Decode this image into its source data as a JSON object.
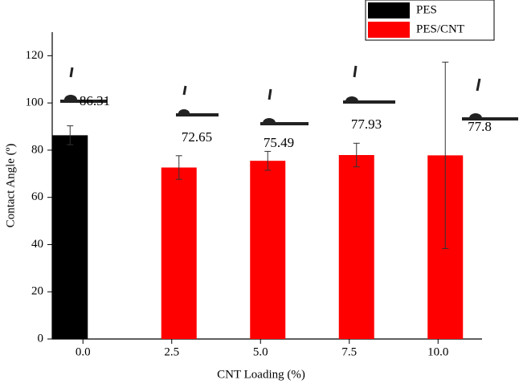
{
  "chart_data": {
    "type": "bar",
    "x_label": "CNT Loading (%)",
    "y_label": "Contact Angle (º)",
    "categories": [
      "0.0",
      "2.5",
      "5.0",
      "7.5",
      "10.0"
    ],
    "series": [
      {
        "name": "PES",
        "color": "#000000",
        "values": [
          86.31,
          null,
          null,
          null,
          null
        ],
        "errors": [
          4,
          null,
          null,
          null,
          null
        ]
      },
      {
        "name": "PES/CNT",
        "color": "#ff0000",
        "values": [
          null,
          72.65,
          75.49,
          77.93,
          77.8
        ],
        "errors": [
          null,
          5,
          4,
          5,
          39.5
        ]
      }
    ],
    "ylim": [
      0,
      130
    ],
    "yticks": [
      0,
      20,
      40,
      60,
      80,
      100,
      120
    ],
    "legend": "top-right"
  }
}
